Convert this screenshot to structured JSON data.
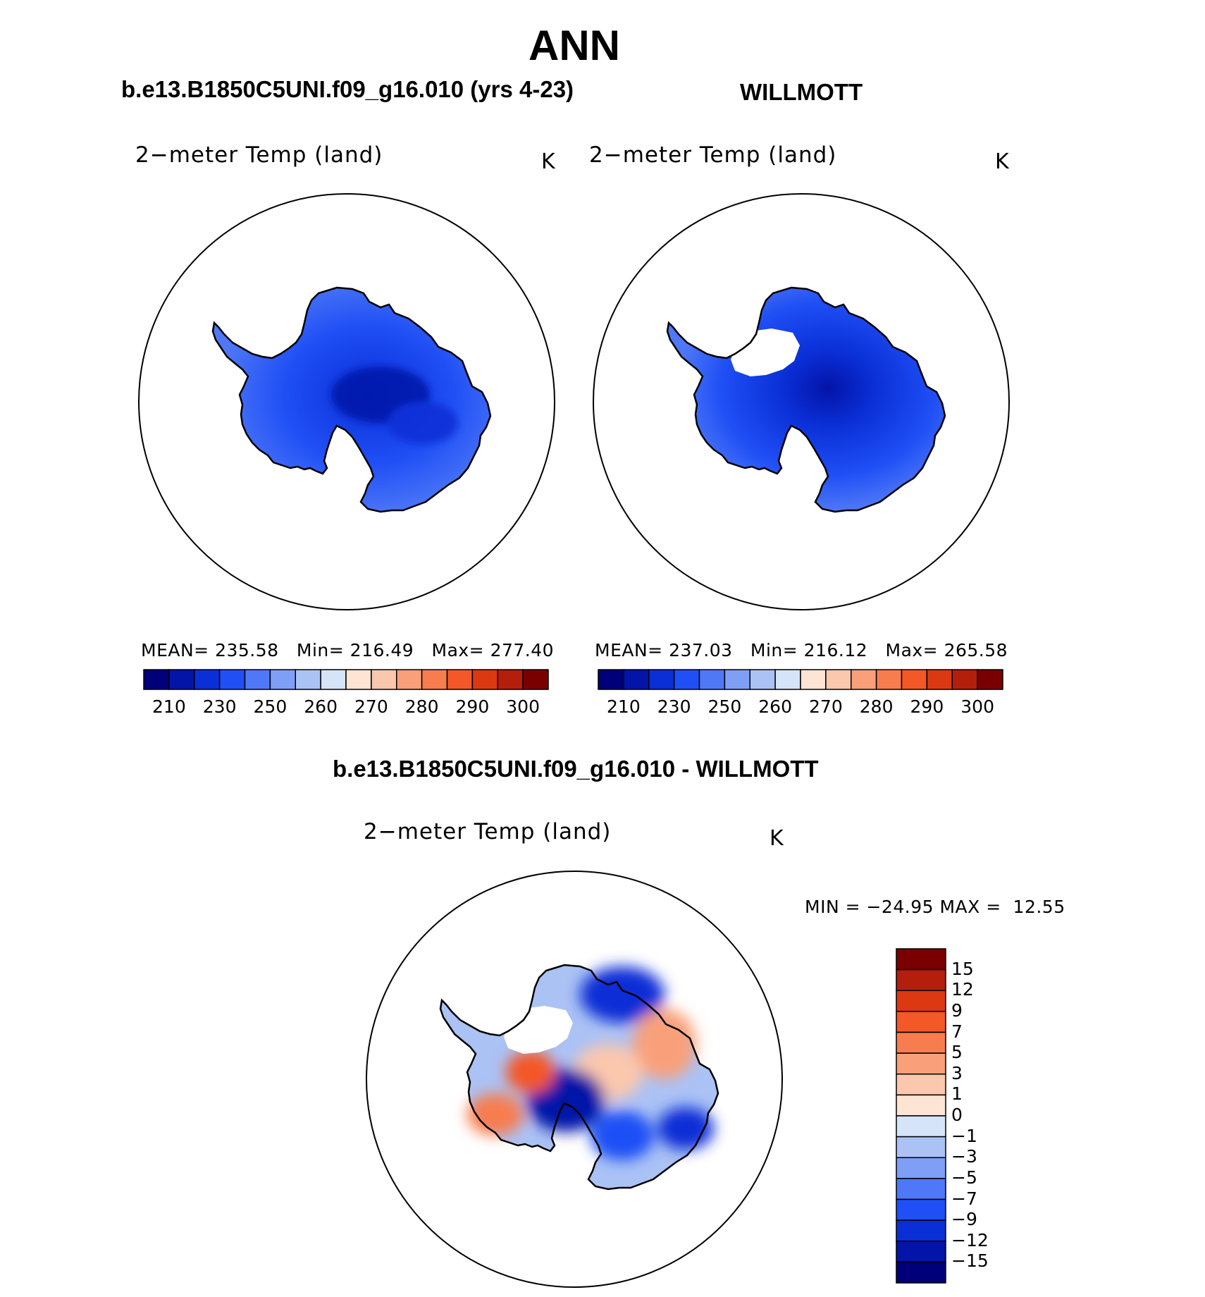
{
  "figure": {
    "title": "ANN",
    "panels": [
      {
        "case_title": "b.e13.B1850C5UNI.f09_g16.010 (yrs 4-23)",
        "variable": "2−meter Temp (land)",
        "units": "K",
        "stats": {
          "mean_label": "MEAN=",
          "mean": "235.58",
          "min_label": "Min=",
          "min": "216.49",
          "max_label": "Max=",
          "max": "277.40"
        }
      },
      {
        "case_title": "WILLMOTT",
        "variable": "2−meter Temp (land)",
        "units": "K",
        "stats": {
          "mean_label": "MEAN=",
          "mean": "237.03",
          "min_label": "Min=",
          "min": "216.12",
          "max_label": "Max=",
          "max": "265.58"
        }
      }
    ],
    "diff_panel": {
      "case_title": "b.e13.B1850C5UNI.f09_g16.010 - WILLMOTT",
      "variable": "2−meter Temp (land)",
      "units": "K",
      "stats": {
        "text": "MIN = −24.95 MAX =  12.55"
      }
    },
    "abs_colorbar": {
      "colors": [
        "#00007a",
        "#0314a8",
        "#0a2fd6",
        "#1f4ff5",
        "#4f78f7",
        "#7f9ff7",
        "#abc2f5",
        "#d6e4f9",
        "#fde4d3",
        "#fbc7ad",
        "#f9a07a",
        "#f77d4f",
        "#f45728",
        "#dc3812",
        "#b31f0a",
        "#7a0000"
      ],
      "ticks": [
        "210",
        "230",
        "250",
        "260",
        "270",
        "280",
        "290",
        "300"
      ]
    },
    "diff_colorbar": {
      "colors": [
        "#00007a",
        "#0314a8",
        "#0a2fd6",
        "#1f4ff5",
        "#4f78f7",
        "#7f9ff7",
        "#abc2f5",
        "#d6e4f9",
        "#fde4d3",
        "#fbc7ad",
        "#f9a07a",
        "#f77d4f",
        "#f45728",
        "#dc3812",
        "#b31f0a",
        "#7a0000"
      ],
      "ticks": [
        "15",
        "12",
        "9",
        "7",
        "5",
        "3",
        "1",
        "0",
        "−1",
        "−3",
        "−5",
        "−7",
        "−9",
        "−12",
        "−15"
      ]
    }
  }
}
